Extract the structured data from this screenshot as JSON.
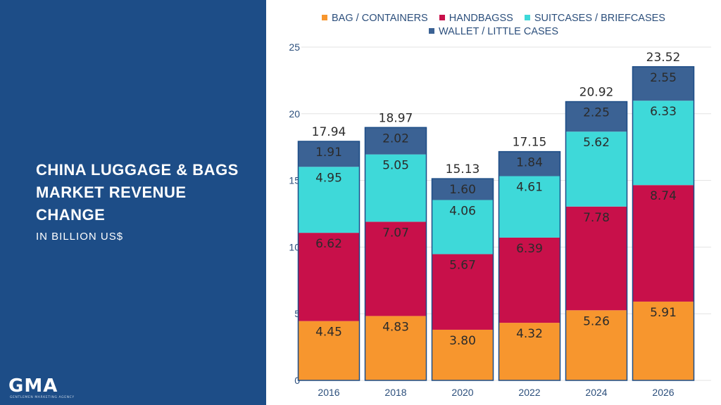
{
  "panel": {
    "title": "CHINA LUGGAGE & BAGS MARKET REVENUE CHANGE",
    "subtitle": "IN BILLION US$"
  },
  "logo": {
    "text": "GMA",
    "tagline": "GENTLEMEN MARKETING AGENCY"
  },
  "colors": {
    "panel_bg": "#1d4d87",
    "bag_containers": "#f7962e",
    "handbags": "#c8104a",
    "suitcases": "#3ed9d9",
    "wallet": "#3b6294"
  },
  "chart_data": {
    "type": "bar",
    "stacked": true,
    "title": "CHINA LUGGAGE & BAGS MARKET REVENUE CHANGE",
    "ylabel": "IN BILLION US$",
    "xlabel": "",
    "ylim": [
      0,
      25
    ],
    "yticks": [
      0,
      5,
      10,
      15,
      20,
      25
    ],
    "categories": [
      "2016",
      "2018",
      "2020",
      "2022",
      "2024",
      "2026"
    ],
    "series": [
      {
        "name": "BAG / CONTAINERS",
        "color": "#f7962e",
        "values": [
          4.45,
          4.83,
          3.8,
          4.32,
          5.26,
          5.91
        ],
        "labels": [
          "4.45",
          "4.83",
          "3.80",
          "4.32",
          "5.26",
          "5.91"
        ]
      },
      {
        "name": "HANDBAGSS",
        "color": "#c8104a",
        "values": [
          6.62,
          7.07,
          5.67,
          6.39,
          7.78,
          8.74
        ],
        "labels": [
          "6.62",
          "7.07",
          "5.67",
          "6.39",
          "7.78",
          "8.74"
        ]
      },
      {
        "name": "SUITCASES / BRIEFCASES",
        "color": "#3ed9d9",
        "values": [
          4.95,
          5.05,
          4.06,
          4.61,
          5.62,
          6.33
        ],
        "labels": [
          "4.95",
          "5.05",
          "4.06",
          "4.61",
          "5.62",
          "6.33"
        ]
      },
      {
        "name": "WALLET / LITTLE CASES",
        "color": "#3b6294",
        "values": [
          1.91,
          2.02,
          1.6,
          1.84,
          2.25,
          2.55
        ],
        "labels": [
          "1.91",
          "2.02",
          "1.60",
          "1.84",
          "2.25",
          "2.55"
        ]
      }
    ],
    "totals": [
      17.94,
      18.97,
      15.13,
      17.15,
      20.92,
      23.52
    ],
    "total_labels": [
      "17.94",
      "18.97",
      "15.13",
      "17.15",
      "20.92",
      "23.52"
    ],
    "legend_position": "top",
    "grid": true
  }
}
